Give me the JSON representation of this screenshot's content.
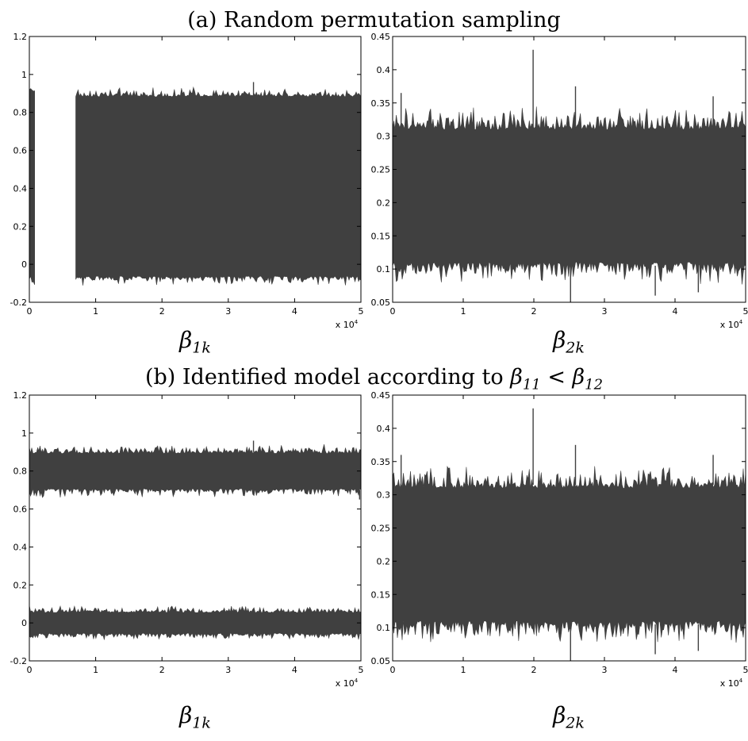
{
  "colors": {
    "trace": "#404040",
    "axis": "#000000",
    "background": "#ffffff"
  },
  "sections": [
    {
      "title": "(a) Random permutation sampling",
      "title_plain": "(a) Random permutation sampling",
      "condition": null
    },
    {
      "title_prefix": "(b) Identified model according to ",
      "condition": {
        "lhs_sym": "β",
        "lhs_sub": "11",
        "op": " < ",
        "rhs_sym": "β",
        "rhs_sub": "12"
      }
    }
  ],
  "chart_data": [
    {
      "type": "line",
      "section": "a",
      "label_symbol": "β",
      "label_sub": "1k",
      "xlim": [
        0,
        50000
      ],
      "ylim": [
        -0.2,
        1.2
      ],
      "xticks": [
        "0",
        "1",
        "2",
        "3",
        "4",
        "5"
      ],
      "yticks": [
        "-0.2",
        "0",
        "0.2",
        "0.4",
        "0.6",
        "0.8",
        "1",
        "1.2"
      ],
      "x_multiplier": {
        "base": "x 10",
        "exp": "4"
      },
      "grid": false,
      "bands": [
        {
          "x": [
            0,
            800
          ],
          "lower": -0.07,
          "upper": 0.92,
          "noise": 0.03
        },
        {
          "x": [
            7000,
            50000
          ],
          "lower": -0.07,
          "upper": 0.89,
          "noise": 0.025
        }
      ],
      "spikes": [
        {
          "x": 33800,
          "y": 0.96
        },
        {
          "x": 7600,
          "y": 0.41
        },
        {
          "x": 900,
          "y": 0.94
        }
      ]
    },
    {
      "type": "line",
      "section": "a",
      "label_symbol": "β",
      "label_sub": "2k",
      "xlim": [
        0,
        50000
      ],
      "ylim": [
        0.05,
        0.45
      ],
      "xticks": [
        "0",
        "1",
        "2",
        "3",
        "4",
        "5"
      ],
      "yticks": [
        "0.05",
        "0.1",
        "0.15",
        "0.2",
        "0.25",
        "0.3",
        "0.35",
        "0.4",
        "0.45"
      ],
      "x_multiplier": {
        "base": "x 10",
        "exp": "4"
      },
      "grid": false,
      "bands": [
        {
          "x": [
            0,
            50000
          ],
          "lower": 0.105,
          "upper": 0.315,
          "noise": 0.018
        }
      ],
      "spikes": [
        {
          "x": 19900,
          "y": 0.43
        },
        {
          "x": 25200,
          "y": 0.05
        },
        {
          "x": 25900,
          "y": 0.375
        },
        {
          "x": 1200,
          "y": 0.365
        },
        {
          "x": 45400,
          "y": 0.36
        },
        {
          "x": 43300,
          "y": 0.065
        },
        {
          "x": 37200,
          "y": 0.06
        }
      ]
    },
    {
      "type": "line",
      "section": "b",
      "label_symbol": "β",
      "label_sub": "1k",
      "xlim": [
        0,
        50000
      ],
      "ylim": [
        -0.2,
        1.2
      ],
      "xticks": [
        "0",
        "1",
        "2",
        "3",
        "4",
        "5"
      ],
      "yticks": [
        "-0.2",
        "0",
        "0.2",
        "0.4",
        "0.6",
        "0.8",
        "1",
        "1.2"
      ],
      "x_multiplier": {
        "base": "x 10",
        "exp": "4"
      },
      "grid": false,
      "bands": [
        {
          "x": [
            0,
            50000
          ],
          "lower": 0.7,
          "upper": 0.9,
          "noise": 0.025
        },
        {
          "x": [
            0,
            50000
          ],
          "lower": -0.06,
          "upper": 0.06,
          "noise": 0.02
        }
      ],
      "spikes": [
        {
          "x": 33800,
          "y": 0.96
        },
        {
          "x": 49800,
          "y": 0.65
        }
      ]
    },
    {
      "type": "line",
      "section": "b",
      "label_symbol": "β",
      "label_sub": "2k",
      "xlim": [
        0,
        50000
      ],
      "ylim": [
        0.05,
        0.45
      ],
      "xticks": [
        "0",
        "1",
        "2",
        "3",
        "4",
        "5"
      ],
      "yticks": [
        "0.05",
        "0.1",
        "0.15",
        "0.2",
        "0.25",
        "0.3",
        "0.35",
        "0.4",
        "0.45"
      ],
      "x_multiplier": {
        "base": "x 10",
        "exp": "4"
      },
      "grid": false,
      "bands": [
        {
          "x": [
            0,
            50000
          ],
          "lower": 0.105,
          "upper": 0.315,
          "noise": 0.018
        }
      ],
      "spikes": [
        {
          "x": 19900,
          "y": 0.43
        },
        {
          "x": 25200,
          "y": 0.05
        },
        {
          "x": 25900,
          "y": 0.375
        },
        {
          "x": 1200,
          "y": 0.36
        },
        {
          "x": 45400,
          "y": 0.36
        },
        {
          "x": 43300,
          "y": 0.065
        },
        {
          "x": 37200,
          "y": 0.06
        }
      ]
    }
  ]
}
